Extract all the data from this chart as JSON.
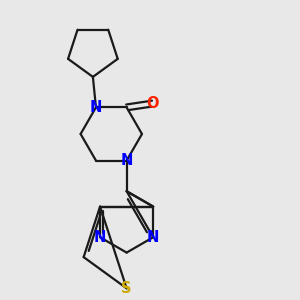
{
  "bg_color": "#e8e8e8",
  "bond_color": "#1a1a1a",
  "N_color": "#0000ff",
  "O_color": "#ff2200",
  "S_color": "#ccaa00",
  "line_width": 1.6,
  "font_size": 10.5,
  "xlim": [
    0,
    10
  ],
  "ylim": [
    0,
    10
  ]
}
